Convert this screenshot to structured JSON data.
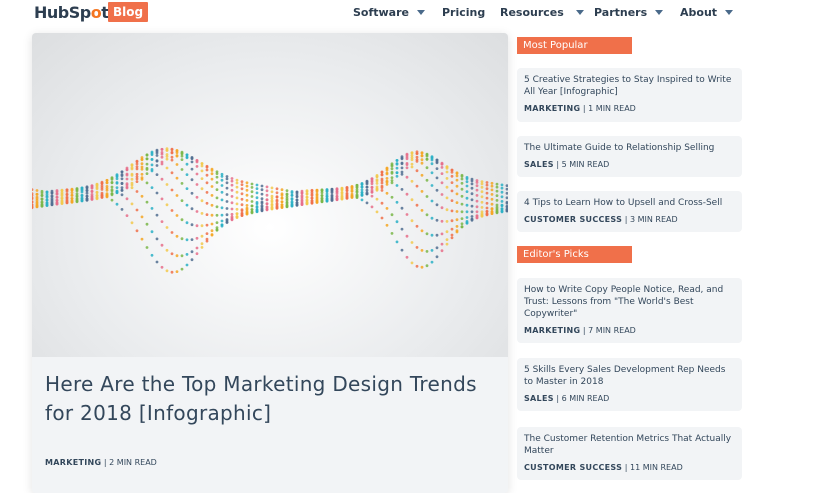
{
  "header": {
    "logo": "HubSpot",
    "blog_badge": "Blog",
    "nav": [
      {
        "label": "Software",
        "dropdown": true
      },
      {
        "label": "Pricing",
        "dropdown": false
      },
      {
        "label": "Resources",
        "dropdown": true
      },
      {
        "label": "Partners",
        "dropdown": true
      },
      {
        "label": "About",
        "dropdown": true
      }
    ]
  },
  "featured": {
    "title": "Here Are the Top Marketing Design Trends for 2018 [Infographic]",
    "category": "MARKETING",
    "read_time": "| 2 MIN READ"
  },
  "most_popular": {
    "label": "Most Popular",
    "items": [
      {
        "title": "5 Creative Strategies to Stay Inspired to Write All Year [Infographic]",
        "category": "MARKETING",
        "read_time": "| 1 MIN READ"
      },
      {
        "title": "The Ultimate Guide to Relationship Selling",
        "category": "SALES",
        "read_time": "| 5 MIN READ"
      },
      {
        "title": "4 Tips to Learn How to Upsell and Cross-Sell",
        "category": "CUSTOMER SUCCESS",
        "read_time": "| 3 MIN READ"
      }
    ]
  },
  "editors_picks": {
    "label": "Editor's Picks",
    "items": [
      {
        "title": "How to Write Copy People Notice, Read, and Trust: Lessons from \"The World's Best Copywriter\"",
        "category": "MARKETING",
        "read_time": "| 7 MIN READ"
      },
      {
        "title": "5 Skills Every Sales Development Rep Needs to Master in 2018",
        "category": "SALES",
        "read_time": "| 6 MIN READ"
      },
      {
        "title": "The Customer Retention Metrics That Actually Matter",
        "category": "CUSTOMER SUCCESS",
        "read_time": "| 11 MIN READ"
      }
    ]
  },
  "colors": {
    "accent": "#f0704a",
    "text": "#33475b",
    "card_bg": "#f2f4f6"
  }
}
